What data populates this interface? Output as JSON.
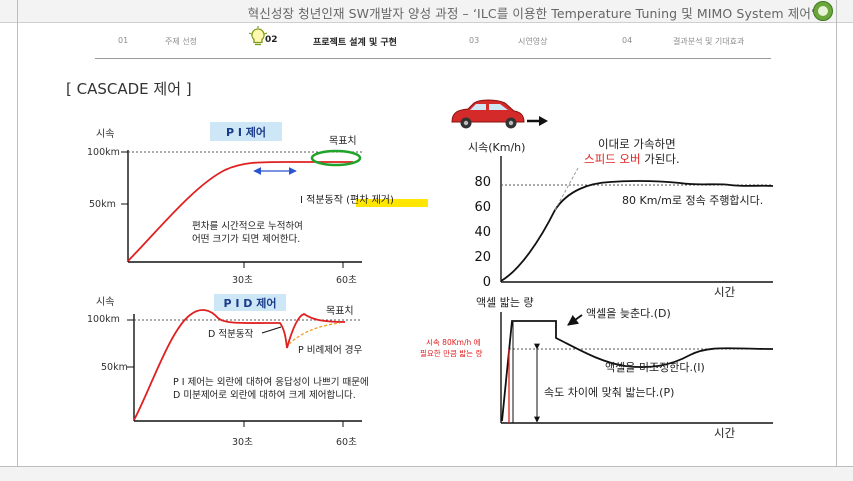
{
  "header": {
    "title": "혁신성장 청년인재 SW개발자 양성 과정 – ‘ILC를 이용한 Temperature Tuning 및 MIMO System 제어’"
  },
  "nav": [
    {
      "num": "01",
      "label": "주제 선정"
    },
    {
      "num": "02",
      "label": "프로젝트 설계 및 구현"
    },
    {
      "num": "03",
      "label": "시연영상"
    },
    {
      "num": "04",
      "label": "결과분석 및 기대효과"
    }
  ],
  "section_title": "[ CASCADE 제어 ]",
  "pi_chart": {
    "badge": "P I 제어",
    "ylabel": "시속",
    "y_ticks": [
      "100km",
      "50km"
    ],
    "x_ticks": [
      "30초",
      "60초"
    ],
    "target_label": "목표치",
    "integral_label_a": "I  적분동작 ",
    "integral_label_b": "(편차 제거)",
    "note_line1": "편차를 시간적으로 누적하여",
    "note_line2": "어떤 크기가 되면 제어한다."
  },
  "pid_chart": {
    "badge": "P I D 제어",
    "ylabel": "시속",
    "y_ticks": [
      "100km",
      "50km"
    ],
    "x_ticks": [
      "30초",
      "60초"
    ],
    "target_label": "목표치",
    "d_label": "D  적분동작",
    "p_label": "P 비례제어 경우",
    "note_line1": "P I 제어는 외란에 대하여 응답성이 나쁘기 때문에",
    "note_line2": "D 미분제어로 외란에 대하여 크게 제어합니다."
  },
  "speed_chart": {
    "ylabel": "시속(Km/h)",
    "y_ticks": [
      "80",
      "60",
      "40",
      "20",
      "0"
    ],
    "xlabel": "시간",
    "note_line1": "이대로 가속하면",
    "note_line2_red": "스피드 오버",
    "note_line2_rest": " 가된다.",
    "cruise_label": "80 Km/m로 정속 주행합시다."
  },
  "pedal_chart": {
    "ylabel": "액셀 밟는 량",
    "xlabel": "시간",
    "red_note1": "시속 80Km/h 에",
    "red_note2": "필요한 만큼 밟는 량",
    "release_label": "액셀을 늦춘다.(D)",
    "fine_label": "액셀을 미조정한다.(I)",
    "press_label": "속도 차이에 맞춰 밟는다.(P)"
  },
  "colors": {
    "accent_red": "#e02020",
    "badge_blue": "#cde7f7",
    "target_green": "#1fa32a",
    "highlight_yellow": "#ffe600",
    "arrow_blue": "#2a55d0"
  },
  "icons": [
    "bulb-icon",
    "car-icon",
    "arrow-right-icon",
    "logo-icon"
  ]
}
